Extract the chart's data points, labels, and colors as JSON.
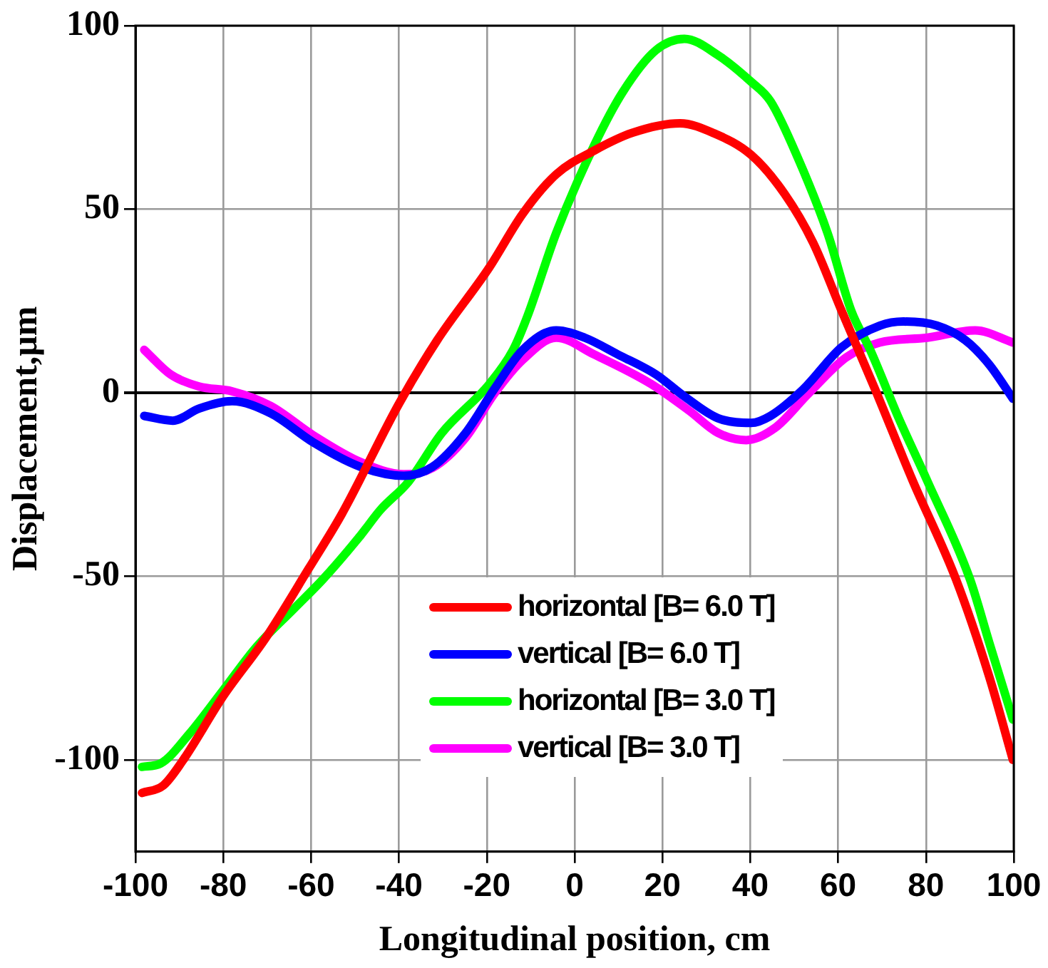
{
  "chart_data": {
    "type": "line",
    "xlabel": "Longitudinal position, cm",
    "ylabel": "Displacement,μm",
    "xlim": [
      -100,
      100
    ],
    "xticks": [
      -100,
      -80,
      -60,
      -40,
      -20,
      0,
      20,
      40,
      60,
      80,
      100
    ],
    "ylim": [
      -125,
      100
    ],
    "yticks": [
      -100,
      -50,
      0,
      50,
      100
    ],
    "grid": true,
    "legend": "bottom right",
    "marker": "none",
    "line_style": "solid",
    "series": [
      {
        "name": "horizontal [B= 6.0 T]",
        "color": "#ff0000",
        "x": [
          -98.5,
          -93.7,
          -89.4,
          -80,
          -70.3,
          -60.6,
          -53,
          -40,
          -31.3,
          -19.5,
          -11.8,
          -4.2,
          4.5,
          13.1,
          24,
          31.5,
          40.2,
          47.8,
          54.3,
          60.8,
          68.4,
          77,
          86.8,
          94.4,
          99.8
        ],
        "values": [
          -109,
          -107,
          -100.5,
          -82.6,
          -66.7,
          -48,
          -33,
          -3,
          14.3,
          34,
          48.8,
          59.5,
          66,
          70.8,
          73.4,
          70.8,
          64.8,
          54.2,
          40.9,
          22.3,
          1,
          -24,
          -50.7,
          -77.3,
          -100
        ]
      },
      {
        "name": "vertical [B= 6.0 T]",
        "color": "#0000ff",
        "x": [
          -98,
          -91.5,
          -85.5,
          -78,
          -69.2,
          -59.5,
          -48.7,
          -38.9,
          -32.4,
          -24.8,
          -18.3,
          -11.8,
          -4.2,
          2.3,
          9.9,
          18.5,
          25,
          32.6,
          40.2,
          44.6,
          52.1,
          60.8,
          69.5,
          74.9,
          82.5,
          89,
          94.4,
          99.8
        ],
        "values": [
          -6.3,
          -7.6,
          -4.3,
          -2.3,
          -5.6,
          -13.5,
          -20.2,
          -22.6,
          -20.2,
          -10.9,
          1,
          11.7,
          17,
          15,
          10.4,
          5,
          -1,
          -6.9,
          -8.2,
          -6.3,
          1,
          12.4,
          18.3,
          19.4,
          18.3,
          14.3,
          7.7,
          -1.6
        ]
      },
      {
        "name": "horizontal [B= 3.0 T]",
        "color": "#00ff00",
        "x": [
          -98.5,
          -94.3,
          -87.8,
          -80,
          -72.5,
          -63.8,
          -57.3,
          -48.7,
          -44.3,
          -37.8,
          -30.2,
          -19.4,
          -14,
          -10.7,
          -4.2,
          4.5,
          11,
          18.5,
          25,
          32.6,
          40.2,
          44.6,
          51,
          57.6,
          63,
          67.3,
          73.8,
          80.3,
          90,
          94.4,
          99.8
        ],
        "values": [
          -101.9,
          -101,
          -93,
          -81,
          -69.3,
          -58.7,
          -50.8,
          -38.8,
          -32,
          -24.2,
          -10.9,
          2.4,
          11.7,
          21,
          43.5,
          67.5,
          82,
          93.3,
          96.4,
          92,
          84.7,
          79.4,
          63.5,
          43.5,
          22.3,
          11.7,
          -6.9,
          -24,
          -50.7,
          -68,
          -89
        ]
      },
      {
        "name": "vertical [B= 3.0 T]",
        "color": "#ff00ff",
        "x": [
          -98,
          -92,
          -85.5,
          -78,
          -69.2,
          -59.5,
          -48.7,
          -38.9,
          -32.4,
          -24.8,
          -18.3,
          -11.8,
          -4.2,
          4.5,
          17.4,
          26.1,
          32.6,
          39.1,
          45.6,
          53.2,
          61.9,
          69.5,
          80.3,
          91.2,
          99.8
        ],
        "values": [
          11.7,
          5,
          1.7,
          0.4,
          -3.6,
          -11.6,
          -18.9,
          -22.2,
          -20.5,
          -12.2,
          -0.3,
          9,
          15,
          10.4,
          2.4,
          -4.9,
          -10.9,
          -12.9,
          -9.6,
          -0.3,
          9.7,
          13.7,
          15,
          17,
          13.7
        ]
      }
    ]
  }
}
